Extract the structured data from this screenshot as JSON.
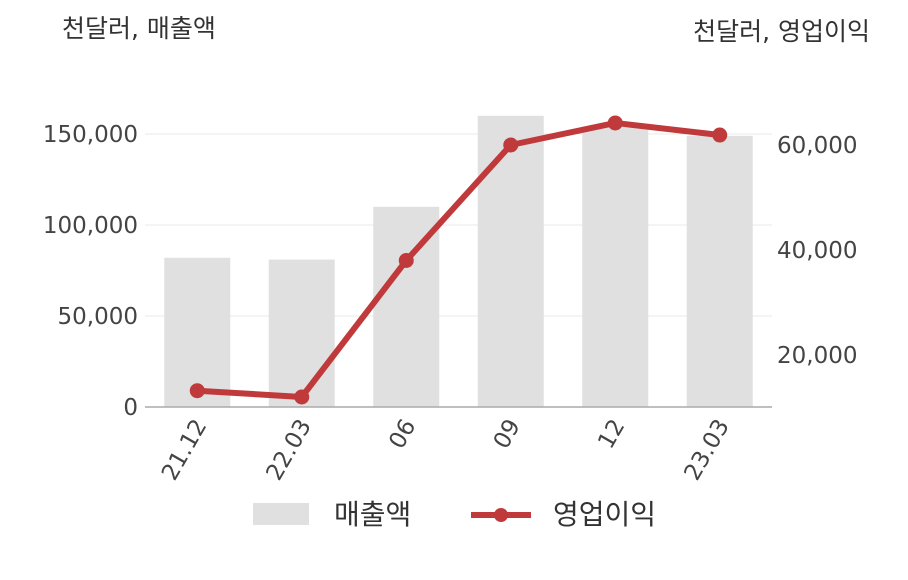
{
  "chart_data": {
    "type": "bar+line",
    "categories": [
      "21.12",
      "22.03",
      "06",
      "09",
      "12",
      "23.03"
    ],
    "left_axis": {
      "unit_label": "천달러, 매출액",
      "ticks": [
        "0",
        "50,000",
        "100,000",
        "150,000"
      ],
      "tick_values": [
        0,
        50000,
        100000,
        150000
      ],
      "range": [
        0,
        160000
      ]
    },
    "right_axis": {
      "unit_label": "천달러, 영업이익",
      "ticks": [
        "20,000",
        "40,000",
        "60,000"
      ],
      "tick_values": [
        20000,
        40000,
        60000
      ],
      "range": [
        10000,
        70000
      ]
    },
    "series": [
      {
        "name": "매출액",
        "type": "bar",
        "axis": "left",
        "color": "#e0e0e0",
        "values": [
          82000,
          81000,
          110000,
          160000,
          154000,
          149000
        ]
      },
      {
        "name": "영업이익",
        "type": "line",
        "axis": "right",
        "color": "#c0393b",
        "values": [
          13200,
          12000,
          38000,
          60000,
          64200,
          61900
        ]
      }
    ],
    "grid": true,
    "legend_position": "bottom"
  }
}
